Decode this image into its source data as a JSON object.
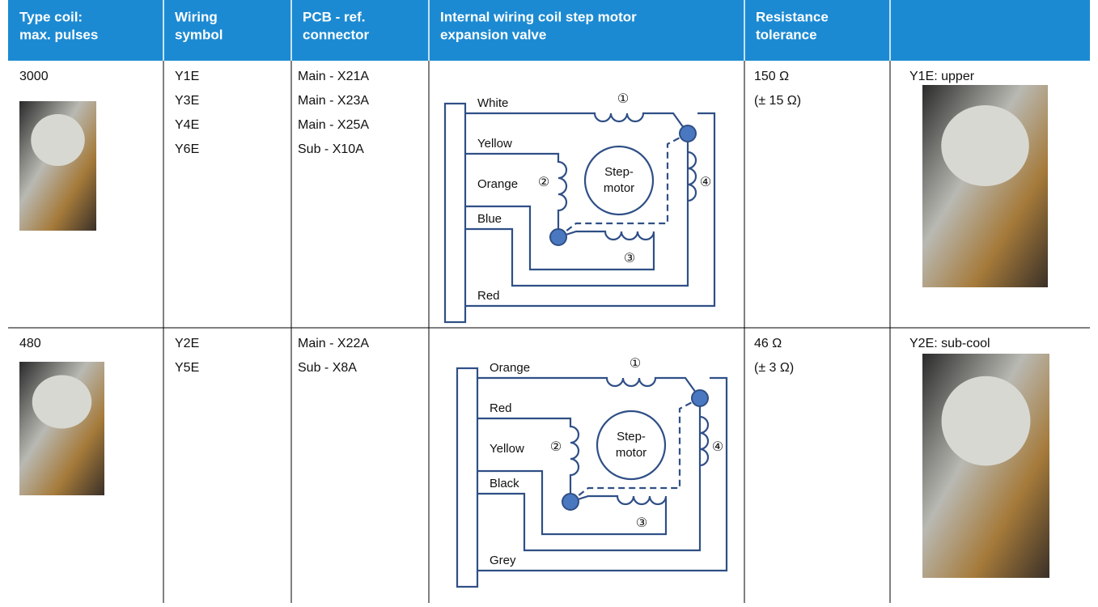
{
  "table": {
    "headers": [
      [
        "Type coil:",
        "max. pulses"
      ],
      [
        "Wiring",
        "symbol"
      ],
      [
        "PCB - ref.",
        "connector"
      ],
      [
        "Internal wiring coil step motor",
        "expansion valve"
      ],
      [
        "Resistance",
        "tolerance"
      ]
    ],
    "rows": [
      {
        "pulses": "3000",
        "symbols": [
          "Y1E",
          "Y3E",
          "Y4E",
          "Y6E"
        ],
        "connectors": [
          "Main - X21A",
          "Main - X23A",
          "Main - X25A",
          "Sub - X10A"
        ],
        "diagram": {
          "wires": [
            "White",
            "Yellow",
            "Orange",
            "Blue",
            "Red"
          ],
          "coils": [
            "①",
            "②",
            "③",
            "④"
          ],
          "motor": [
            "Step-",
            "motor"
          ]
        },
        "resistance": "150 Ω",
        "tolerance": "(± 15 Ω)",
        "photo_caption": "Y1E: upper"
      },
      {
        "pulses": "480",
        "symbols": [
          "Y2E",
          "Y5E"
        ],
        "connectors": [
          "Main - X22A",
          "Sub - X8A"
        ],
        "diagram": {
          "wires": [
            "Orange",
            "Red",
            "Yellow",
            "Black",
            "Grey"
          ],
          "coils": [
            "①",
            "②",
            "③",
            "④"
          ],
          "motor": [
            "Step-",
            "motor"
          ]
        },
        "resistance": "46 Ω",
        "tolerance": "(± 3 Ω)",
        "photo_caption": "Y2E: sub-cool"
      }
    ]
  }
}
